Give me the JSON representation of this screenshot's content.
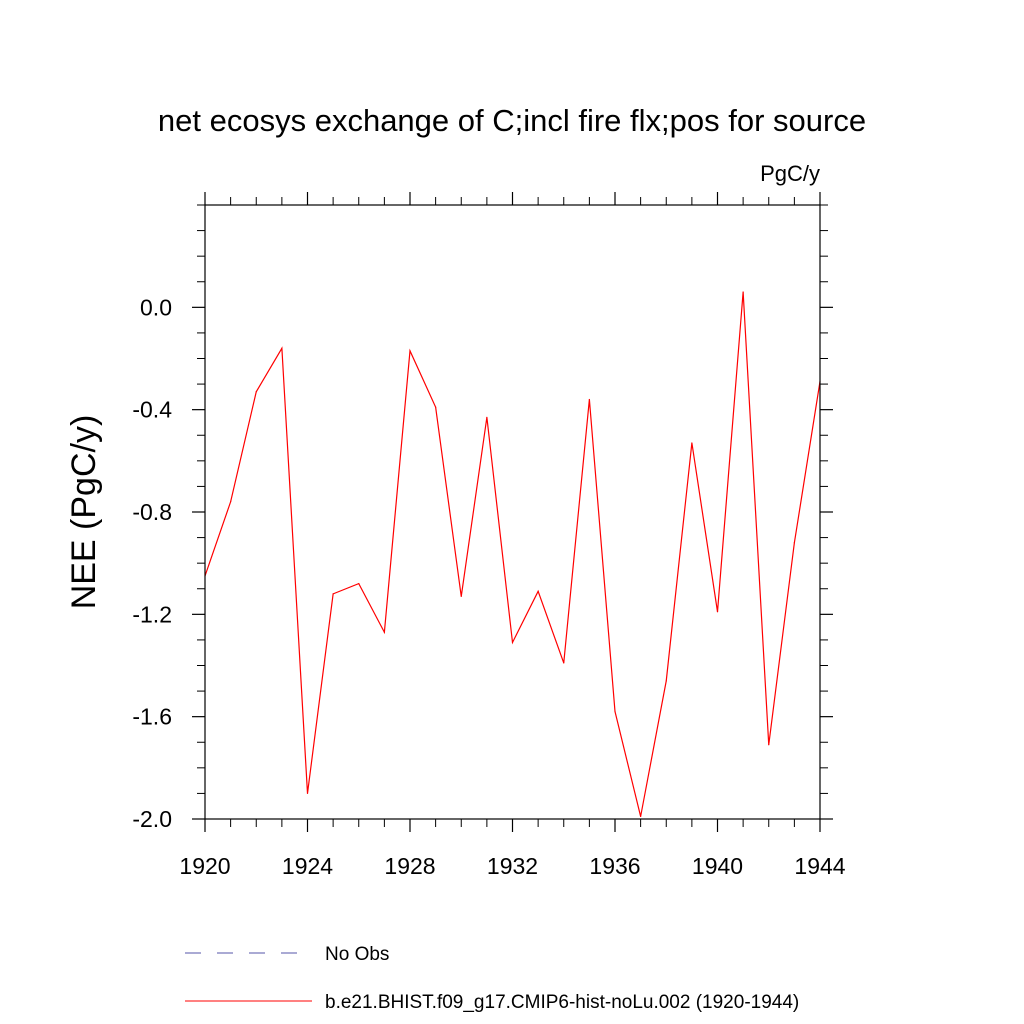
{
  "chart_data": {
    "type": "line",
    "title": "net ecosys exchange of C;incl fire flx;pos for source",
    "units": "PgC/y",
    "ylabel": "NEE  (PgC/y)",
    "xlabel": "",
    "xlim": [
      1920,
      1944
    ],
    "ylim": [
      -2.0,
      0.4
    ],
    "x_ticks": [
      1920,
      1924,
      1928,
      1932,
      1936,
      1940,
      1944
    ],
    "x_tick_labels": [
      "1920",
      "1924",
      "1928",
      "1932",
      "1936",
      "1940",
      "1944"
    ],
    "y_ticks": [
      0.0,
      -0.4,
      -0.8,
      -1.2,
      -1.6,
      -2.0
    ],
    "y_tick_labels": [
      "0.0",
      "-0.4",
      "-0.8",
      "-1.2",
      "-1.6",
      "-2.0"
    ],
    "x_minor_step": 1,
    "y_minor_step": 0.1,
    "grid": false,
    "series": [
      {
        "name": "b.e21.BHIST.f09_g17.CMIP6-hist-noLu.002 (1920-1944)",
        "color": "#ff0000",
        "dash": "solid",
        "x": [
          1920,
          1921,
          1922,
          1923,
          1924,
          1925,
          1926,
          1927,
          1928,
          1929,
          1930,
          1931,
          1932,
          1933,
          1934,
          1935,
          1936,
          1937,
          1938,
          1939,
          1940,
          1941,
          1942,
          1943,
          1944
        ],
        "values": [
          -1.05,
          -0.76,
          -0.33,
          -0.16,
          -1.9,
          -1.12,
          -1.08,
          -1.27,
          -0.17,
          -0.39,
          -1.13,
          -0.43,
          -1.31,
          -1.11,
          -1.39,
          -0.36,
          -1.58,
          -1.99,
          -1.46,
          -0.53,
          -1.19,
          0.06,
          -1.71,
          -0.92,
          -0.29
        ]
      }
    ],
    "legend": {
      "placement": "bottom",
      "entries": [
        {
          "label": "No Obs",
          "color": "#5555aa",
          "dash": "dashed"
        },
        {
          "label": "b.e21.BHIST.f09_g17.CMIP6-hist-noLu.002 (1920-1944)",
          "color": "#ff0000",
          "dash": "solid"
        }
      ]
    }
  }
}
